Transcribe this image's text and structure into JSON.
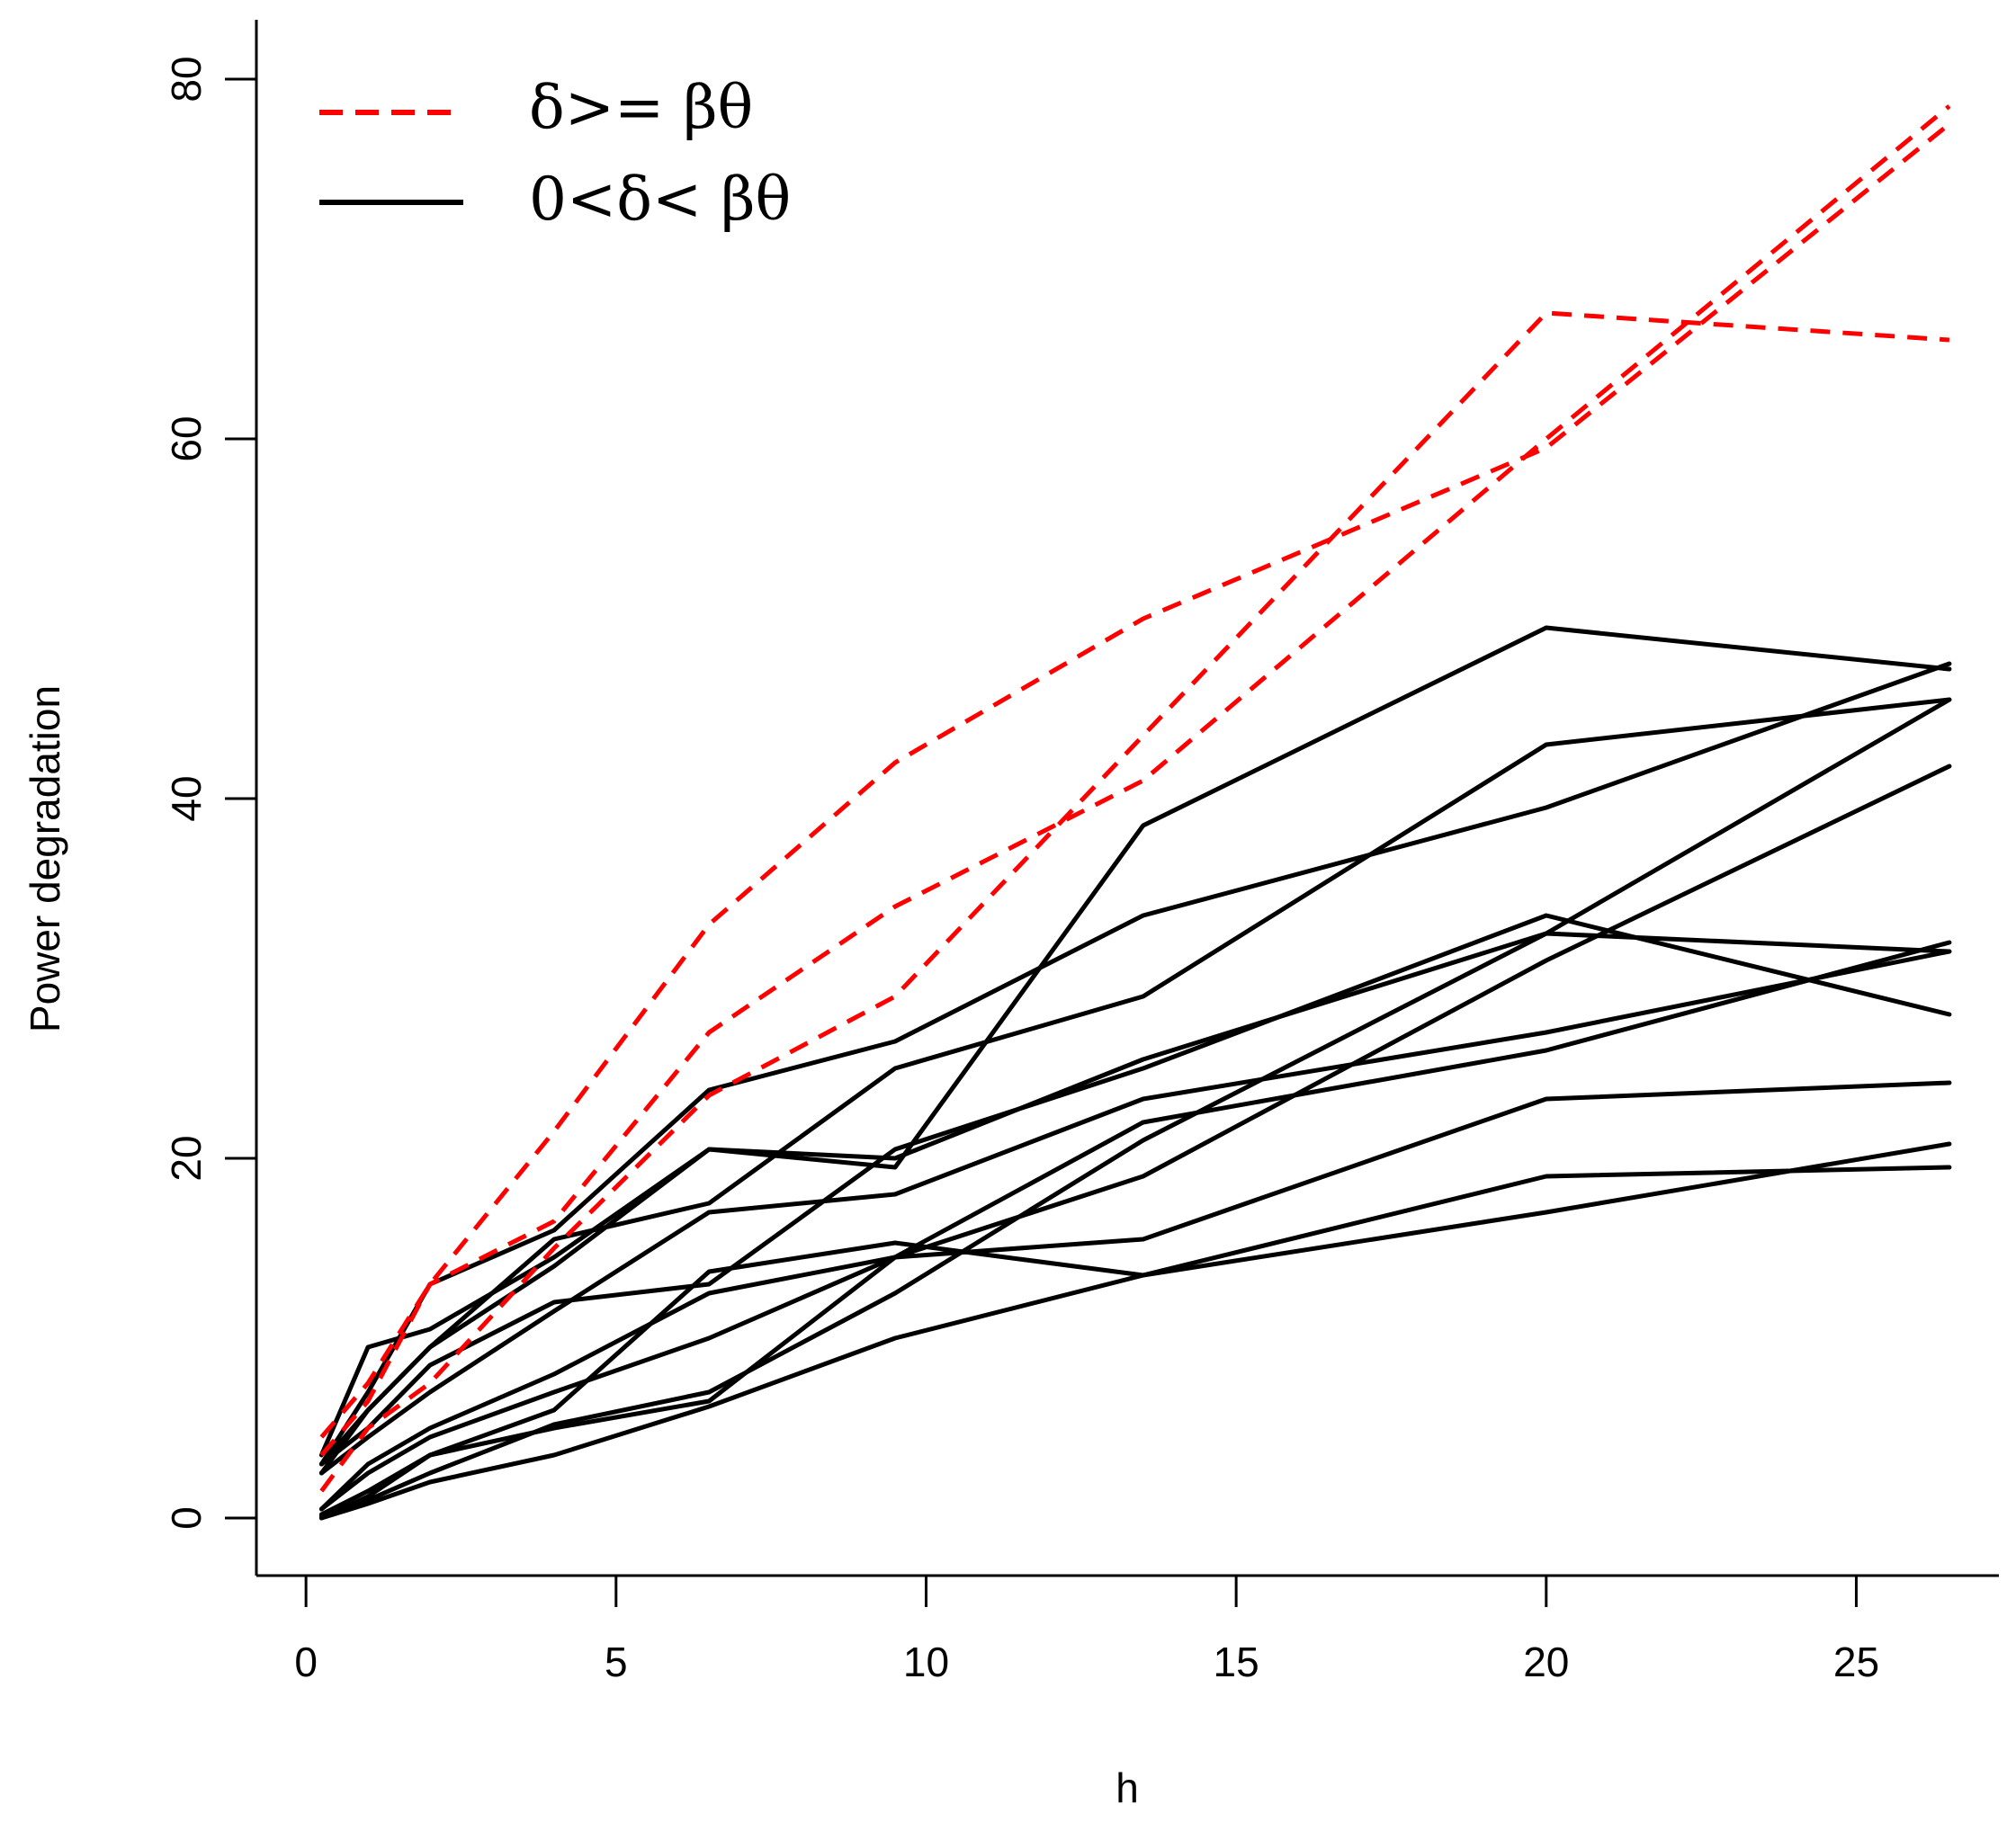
{
  "chart_data": {
    "type": "line",
    "title": "",
    "xlabel": "h",
    "ylabel": "Power degradation",
    "xlim": [
      -0.8,
      27.3
    ],
    "ylim": [
      -3.2,
      83.3
    ],
    "xticks": [
      0,
      5,
      10,
      15,
      20,
      25
    ],
    "yticks": [
      0,
      20,
      40,
      60,
      80
    ],
    "grid": false,
    "legend": {
      "position": "top-left",
      "entries": [
        {
          "label": "δ>= βθ",
          "style": "dashed",
          "color": "#ff0000"
        },
        {
          "label": "0<δ< βθ",
          "style": "solid",
          "color": "#000000"
        }
      ]
    },
    "x": [
      0.25,
      1,
      2,
      4,
      6.5,
      9.5,
      13.5,
      20,
      26.5
    ],
    "series": [
      {
        "name": "δ>= βθ 1",
        "group": "dashed",
        "color": "#ff0000",
        "values": [
          3.5,
          6.5,
          13,
          16.5,
          27,
          34,
          41,
          60,
          78.5
        ]
      },
      {
        "name": "δ>= βθ 2",
        "group": "dashed",
        "color": "#ff0000",
        "values": [
          1.5,
          5,
          7.5,
          15,
          23.5,
          29,
          43.5,
          67,
          65.5
        ]
      },
      {
        "name": "δ>= βθ 3",
        "group": "dashed",
        "color": "#ff0000",
        "values": [
          4.5,
          7.5,
          13,
          21.5,
          33,
          42,
          50,
          59.5,
          77.5
        ]
      },
      {
        "name": "0<δ< βθ 1",
        "group": "solid",
        "color": "#000000",
        "values": [
          3.5,
          9.5,
          10.5,
          14.5,
          20.5,
          19.5,
          38.5,
          49.5,
          47.2
        ]
      },
      {
        "name": "0<δ< βθ 2",
        "group": "solid",
        "color": "#000000",
        "values": [
          3,
          7,
          13,
          16,
          23.8,
          26.5,
          33.5,
          39.5,
          47.5
        ]
      },
      {
        "name": "0<δ< βθ 3",
        "group": "solid",
        "color": "#000000",
        "values": [
          2.5,
          6,
          9.5,
          15.5,
          17.5,
          25,
          29,
          43,
          45.5
        ]
      },
      {
        "name": "0<δ< βθ 4",
        "group": "solid",
        "color": "#000000",
        "values": [
          3,
          6,
          9.5,
          14,
          20.5,
          20,
          25.5,
          32.5,
          45.5
        ]
      },
      {
        "name": "0<δ< βθ 5",
        "group": "solid",
        "color": "#000000",
        "values": [
          3,
          5,
          8.5,
          12,
          13,
          20.5,
          25,
          33.5,
          28
        ]
      },
      {
        "name": "0<δ< βθ 6",
        "group": "solid",
        "color": "#000000",
        "values": [
          2.5,
          4.5,
          7,
          11.5,
          17,
          18,
          23.3,
          27,
          31.5
        ]
      },
      {
        "name": "0<δ< βθ 7",
        "group": "solid",
        "color": "#000000",
        "values": [
          0.5,
          3,
          5,
          8,
          12.5,
          14.5,
          22,
          26,
          32
        ]
      },
      {
        "name": "0<δ< βθ 8",
        "group": "solid",
        "color": "#000000",
        "values": [
          0.5,
          2.5,
          4.5,
          7,
          10,
          14.5,
          19,
          31,
          41.8
        ]
      },
      {
        "name": "0<δ< βθ 9",
        "group": "solid",
        "color": "#000000",
        "values": [
          0.2,
          1.5,
          3.5,
          6,
          13.7,
          15.3,
          13.5,
          17,
          20.8
        ]
      },
      {
        "name": "0<δ< βθ 10",
        "group": "solid",
        "color": "#000000",
        "values": [
          0,
          1.2,
          3.5,
          5,
          6.5,
          14.5,
          15.5,
          23.3,
          24.2
        ]
      },
      {
        "name": "0<δ< βθ 11",
        "group": "solid",
        "color": "#000000",
        "values": [
          0.1,
          1,
          2.5,
          5.2,
          7,
          12.5,
          21,
          32.5,
          31.5
        ]
      },
      {
        "name": "0<δ< βθ 12",
        "group": "solid",
        "color": "#000000",
        "values": [
          0,
          0.8,
          2,
          3.5,
          6.2,
          10,
          13.5,
          19,
          19.5
        ]
      }
    ]
  }
}
